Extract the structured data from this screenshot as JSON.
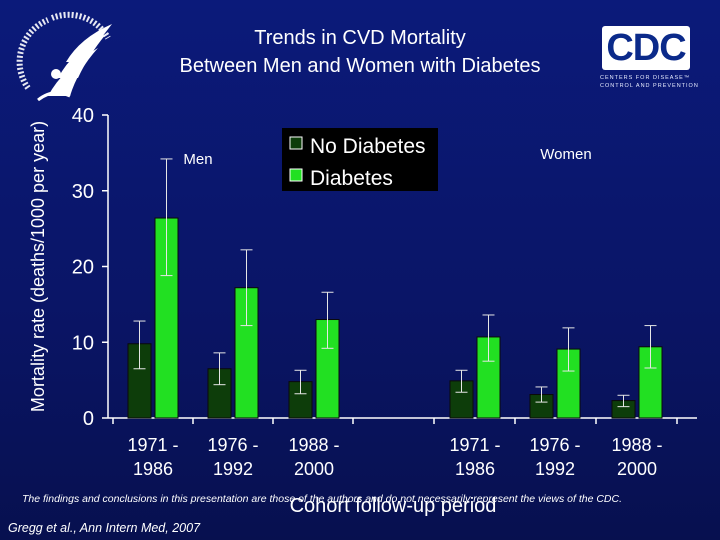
{
  "title_line1": "Trends in CVD Mortality",
  "title_line2": "Between Men and Women with Diabetes",
  "cdc_logo": {
    "text": "CDC",
    "line1": "CENTERS FOR DISEASE™",
    "line2": "CONTROL AND PREVENTION"
  },
  "hhs_logo": {
    "icon": "hhs-eagle-seal"
  },
  "disclaimer": "The findings and conclusions in this presentation are those of the authors and do not necessarily represent the views of the CDC.",
  "citation": "Gregg et al., Ann Intern Med, 2007",
  "colors": {
    "no_diabetes": "#0d3d0a",
    "diabetes": "#22e022",
    "axis": "#ffffff"
  },
  "chart_data": {
    "type": "bar",
    "ylabel": "Mortality rate (deaths/1000 per year)",
    "xlabel": "Cohort follow-up period",
    "ylim": [
      0,
      40
    ],
    "yticks": [
      0,
      10,
      20,
      30,
      40
    ],
    "grid": false,
    "legend": {
      "position": "top-center"
    },
    "groups": [
      {
        "label": "Men",
        "categories": [
          [
            "1971 -",
            "1986"
          ],
          [
            "1976 -",
            "1992"
          ],
          [
            "1988 -",
            "2000"
          ]
        ],
        "series": [
          {
            "name": "No Diabetes",
            "values": [
              9.8,
              6.5,
              4.8
            ],
            "err_low": [
              6.5,
              4.4,
              3.2
            ],
            "err_high": [
              12.8,
              8.6,
              6.3
            ]
          },
          {
            "name": "Diabetes",
            "values": [
              26.4,
              17.2,
              13.0
            ],
            "err_low": [
              18.8,
              12.2,
              9.2
            ],
            "err_high": [
              34.2,
              22.2,
              16.6
            ]
          }
        ]
      },
      {
        "label": "Women",
        "categories": [
          [
            "1971 -",
            "1986"
          ],
          [
            "1976 -",
            "1992"
          ],
          [
            "1988 -",
            "2000"
          ]
        ],
        "series": [
          {
            "name": "No Diabetes",
            "values": [
              4.9,
              3.1,
              2.3
            ],
            "err_low": [
              3.4,
              2.1,
              1.5
            ],
            "err_high": [
              6.3,
              4.1,
              3.0
            ]
          },
          {
            "name": "Diabetes",
            "values": [
              10.7,
              9.1,
              9.4
            ],
            "err_low": [
              7.5,
              6.2,
              6.6
            ],
            "err_high": [
              13.6,
              11.9,
              12.2
            ]
          }
        ]
      }
    ]
  }
}
